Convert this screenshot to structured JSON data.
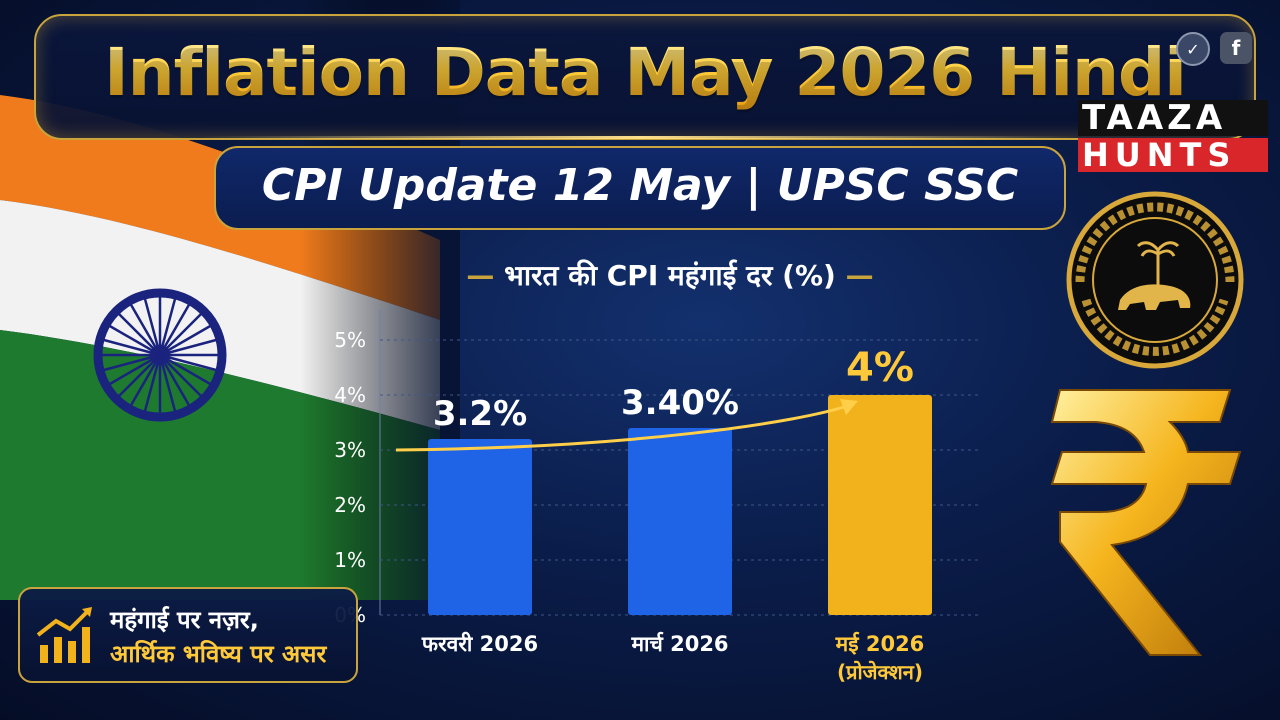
{
  "header": {
    "title": "Inflation Data May 2026 Hindi",
    "subtitle": "CPI Update 12 May | UPSC SSC"
  },
  "brand": {
    "top": "TAAZA",
    "bottom": "HUNTS"
  },
  "social": {
    "fb_glyph": "f",
    "verify_glyph": "✓"
  },
  "chart_data": {
    "type": "bar",
    "title": "भारत की CPI महंगाई दर (%)",
    "categories": [
      "फरवरी 2026",
      "मार्च 2026",
      "मई 2026"
    ],
    "category_sublabels": [
      "",
      "",
      "(प्रोजेक्शन)"
    ],
    "values": [
      3.2,
      3.4,
      4
    ],
    "data_labels": [
      "3.2%",
      "3.40%",
      "4%"
    ],
    "ylim": [
      0,
      5
    ],
    "yticks": [
      0,
      1,
      2,
      3,
      4,
      5
    ],
    "ytick_labels": [
      "0%",
      "1%",
      "2%",
      "3%",
      "4%",
      "5%"
    ],
    "bar_colors": [
      "#1f63e6",
      "#1f63e6",
      "#f2b21c"
    ],
    "grid": true
  },
  "callout": {
    "line1": "महंगाई पर नज़र,",
    "line2": "आर्थिक भविष्य पर असर"
  },
  "decorations": {
    "seal_text": "भारतीय रिज़र्व बैंक · RESERVE BANK OF INDIA",
    "icons": [
      "india-flag-icon",
      "rbi-seal-icon",
      "rupee-icon",
      "rising-chart-icon"
    ]
  },
  "colors": {
    "gold": "#ffc93a",
    "blue_bar": "#1f63e6",
    "gold_bar": "#f2b21c"
  }
}
